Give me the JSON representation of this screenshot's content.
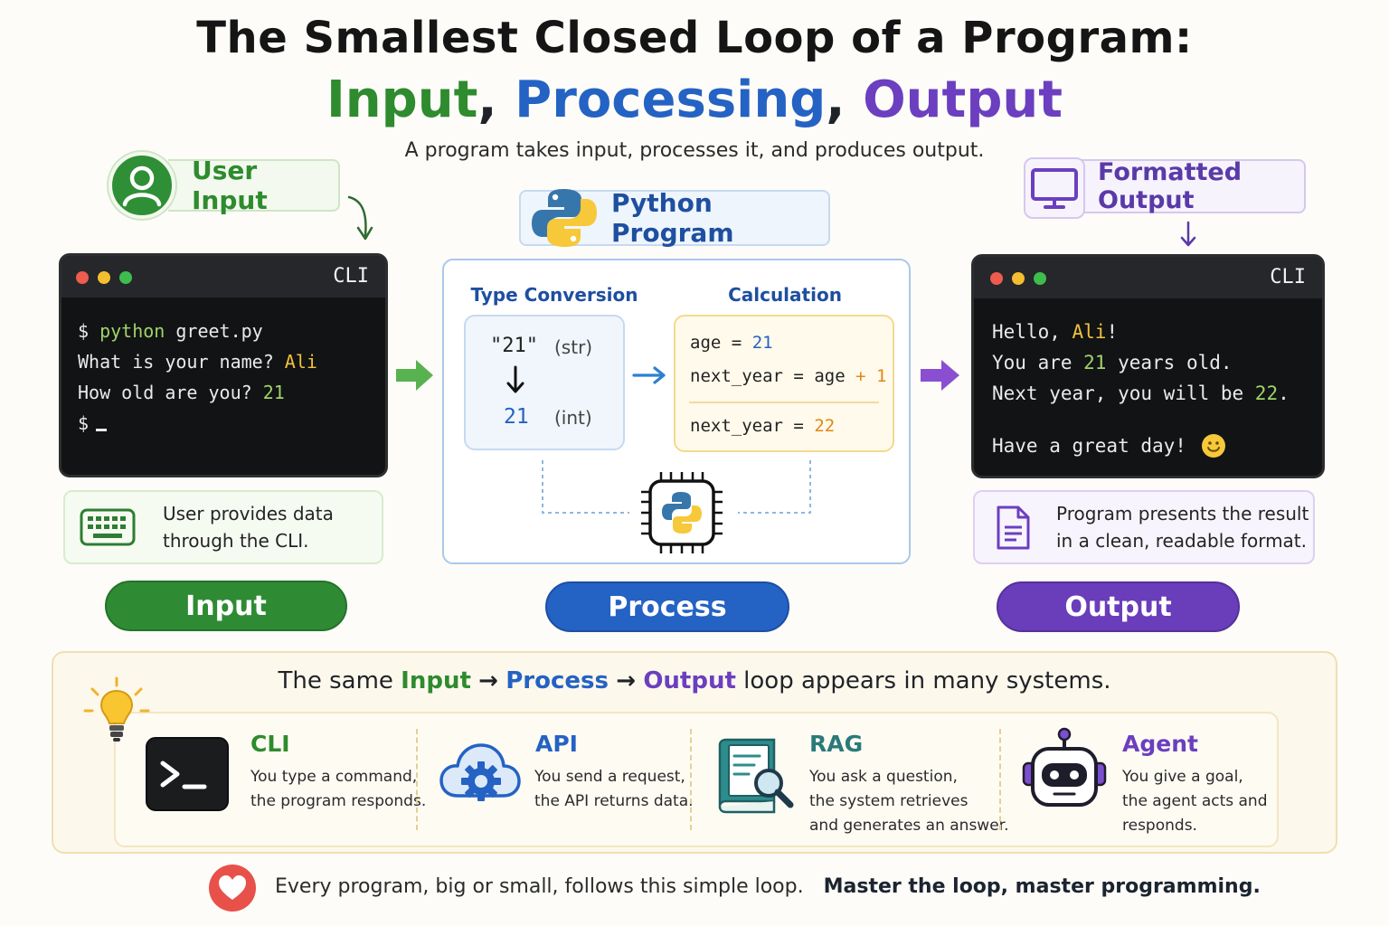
{
  "header": {
    "title_line1": "The Smallest Closed Loop of a Program:",
    "title_input": "Input",
    "title_processing": "Processing",
    "title_output": "Output",
    "title_comma": ",",
    "subtitle": "A program takes input, processes it, and produces output."
  },
  "input_section": {
    "pill_label": "User Input",
    "terminal_label": "CLI",
    "lines": {
      "l1_prompt": "$ ",
      "l1_cmd": "python",
      "l1_arg": " greet.py",
      "l2_text": "What is your name? ",
      "l2_value": "Ali",
      "l3_text": "How old are you? ",
      "l3_value": "21",
      "l4_prompt": "$"
    },
    "caption_line1": "User provides data",
    "caption_line2": "through the CLI.",
    "stage_label": "Input"
  },
  "process_section": {
    "pill_label": "Python Program",
    "type_conversion_label": "Type Conversion",
    "calculation_label": "Calculation",
    "str_value": "\"21\"",
    "str_type": "(str)",
    "int_value": "21",
    "int_type": "(int)",
    "calc": {
      "age_var": "age",
      "eq": "=",
      "age_value": "21",
      "next_var": "next_year",
      "age_ref": "age",
      "plus": "+",
      "one": "1",
      "result_value": "22"
    },
    "stage_label": "Process"
  },
  "output_section": {
    "pill_label": "Formatted Output",
    "terminal_label": "CLI",
    "lines": {
      "l1_text": "Hello, ",
      "l1_value": "Ali",
      "l1_end": "!",
      "l2_text": "You are ",
      "l2_value": "21",
      "l2_end": " years old.",
      "l3_text": "Next year, you will be ",
      "l3_value": "22",
      "l3_end": ".",
      "l4_text": "Have a great day!"
    },
    "caption_line1": "Program presents the result",
    "caption_line2": "in a clean, readable format.",
    "stage_label": "Output"
  },
  "systems_panel": {
    "title_pre": "The same ",
    "title_input": "Input",
    "title_arrow": "→",
    "title_process": "Process",
    "title_output": "Output",
    "title_post": " loop appears in many systems.",
    "items": [
      {
        "name": "CLI",
        "desc1": "You type a command,",
        "desc2": "the program responds.",
        "desc3": ""
      },
      {
        "name": "API",
        "desc1": "You send a request,",
        "desc2": "the API returns data.",
        "desc3": ""
      },
      {
        "name": "RAG",
        "desc1": "You ask a question,",
        "desc2": "the system retrieves",
        "desc3": "and generates an answer."
      },
      {
        "name": "Agent",
        "desc1": "You give a goal,",
        "desc2": "the agent acts and",
        "desc3": "responds."
      }
    ]
  },
  "footer": {
    "text": "Every program, big or small, follows this simple loop.",
    "emphasis": "Master the loop, master programming."
  },
  "colors": {
    "green": "#2e8b34",
    "blue": "#2462c4",
    "purple": "#6a3dba",
    "terminal_bg": "#121314"
  }
}
